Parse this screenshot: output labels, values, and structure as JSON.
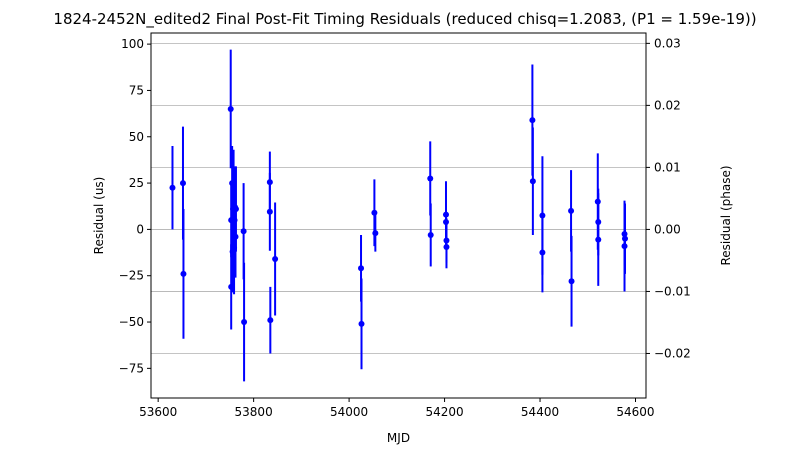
{
  "chart_data": {
    "type": "scatter",
    "title": "1824-2452N_edited2 Final Post-Fit Timing Residuals (reduced chisq=1.2083, (P1 = 1.59e-19))",
    "xlabel": "MJD",
    "ylabel": "Residual (us)",
    "y2label": "Residual (phase)",
    "xlim": [
      53585,
      54622
    ],
    "ylim": [
      -91,
      106
    ],
    "y2lim": [
      -0.02718,
      0.03167
    ],
    "x_ticks": [
      53600,
      53800,
      54000,
      54200,
      54400,
      54600
    ],
    "x_tick_labels": [
      "53600",
      "53800",
      "54000",
      "54200",
      "54400",
      "54600"
    ],
    "y_ticks": [
      -75,
      -50,
      -25,
      0,
      25,
      50,
      75,
      100
    ],
    "y_tick_labels": [
      "−75",
      "−50",
      "−25",
      "0",
      "25",
      "50",
      "75",
      "100"
    ],
    "y2_ticks": [
      -0.02,
      -0.01,
      0.0,
      0.01,
      0.02,
      0.03
    ],
    "y2_tick_labels": [
      "−0.02",
      "−0.01",
      "0.00",
      "0.01",
      "0.02",
      "0.03"
    ],
    "grid_y_phase": [
      -0.02,
      -0.01,
      0.0,
      0.01,
      0.02,
      0.03
    ],
    "grid": "horizontal at right-axis ticks",
    "legend": "none",
    "color": "#0000ff",
    "points": [
      {
        "x": 53630,
        "y": 22.5,
        "err": 22.5
      },
      {
        "x": 53652,
        "y": 25.0,
        "err": 30.5
      },
      {
        "x": 53653,
        "y": -24.0,
        "err": 35.0
      },
      {
        "x": 53752,
        "y": 65.0,
        "err": 32.0
      },
      {
        "x": 53753,
        "y": 5.0,
        "err": 20.0
      },
      {
        "x": 53753,
        "y": -31.0,
        "err": 23.0
      },
      {
        "x": 53755,
        "y": 25.0,
        "err": 20.0
      },
      {
        "x": 53756,
        "y": -12.0,
        "err": 22.0
      },
      {
        "x": 53757,
        "y": 11.0,
        "err": 25.0
      },
      {
        "x": 53758,
        "y": 20.0,
        "err": 23.0
      },
      {
        "x": 53759,
        "y": -10.0,
        "err": 25.0
      },
      {
        "x": 53760,
        "y": 5.0,
        "err": 22.0
      },
      {
        "x": 53761,
        "y": 12.0,
        "err": 22.0
      },
      {
        "x": 53762,
        "y": -4.0,
        "err": 22.0
      },
      {
        "x": 53763,
        "y": 11.0,
        "err": 23.0
      },
      {
        "x": 53779,
        "y": -1.0,
        "err": 26.0
      },
      {
        "x": 53780,
        "y": -50.0,
        "err": 32.0
      },
      {
        "x": 53834,
        "y": 25.5,
        "err": 16.5
      },
      {
        "x": 53834,
        "y": 9.5,
        "err": 21.0
      },
      {
        "x": 53835,
        "y": -49.0,
        "err": 18.0
      },
      {
        "x": 53845,
        "y": -16.0,
        "err": 30.5
      },
      {
        "x": 54025,
        "y": -21.0,
        "err": 18.0
      },
      {
        "x": 54026,
        "y": -51.0,
        "err": 24.5
      },
      {
        "x": 54053,
        "y": 9.0,
        "err": 18.0
      },
      {
        "x": 54055,
        "y": -2.0,
        "err": 10.0
      },
      {
        "x": 54170,
        "y": 27.5,
        "err": 20.0
      },
      {
        "x": 54171,
        "y": -3.0,
        "err": 17.0
      },
      {
        "x": 54203,
        "y": 8.0,
        "err": 18.0
      },
      {
        "x": 54203,
        "y": 4.0,
        "err": 14.0
      },
      {
        "x": 54204,
        "y": -6.0,
        "err": 12.0
      },
      {
        "x": 54204,
        "y": -9.5,
        "err": 11.5
      },
      {
        "x": 54384,
        "y": 59.0,
        "err": 30.0
      },
      {
        "x": 54385,
        "y": 26.0,
        "err": 29.0
      },
      {
        "x": 54405,
        "y": 7.5,
        "err": 32.0
      },
      {
        "x": 54405,
        "y": -12.5,
        "err": 21.5
      },
      {
        "x": 54465,
        "y": 10.0,
        "err": 22.0
      },
      {
        "x": 54466,
        "y": -28.0,
        "err": 24.5
      },
      {
        "x": 54521,
        "y": 15.0,
        "err": 26.0
      },
      {
        "x": 54522,
        "y": 4.0,
        "err": 18.0
      },
      {
        "x": 54522,
        "y": -5.5,
        "err": 25.0
      },
      {
        "x": 54577,
        "y": -2.5,
        "err": 17.0
      },
      {
        "x": 54577,
        "y": -9.0,
        "err": 24.5
      },
      {
        "x": 54578,
        "y": -5.0,
        "err": 19.0
      }
    ]
  }
}
